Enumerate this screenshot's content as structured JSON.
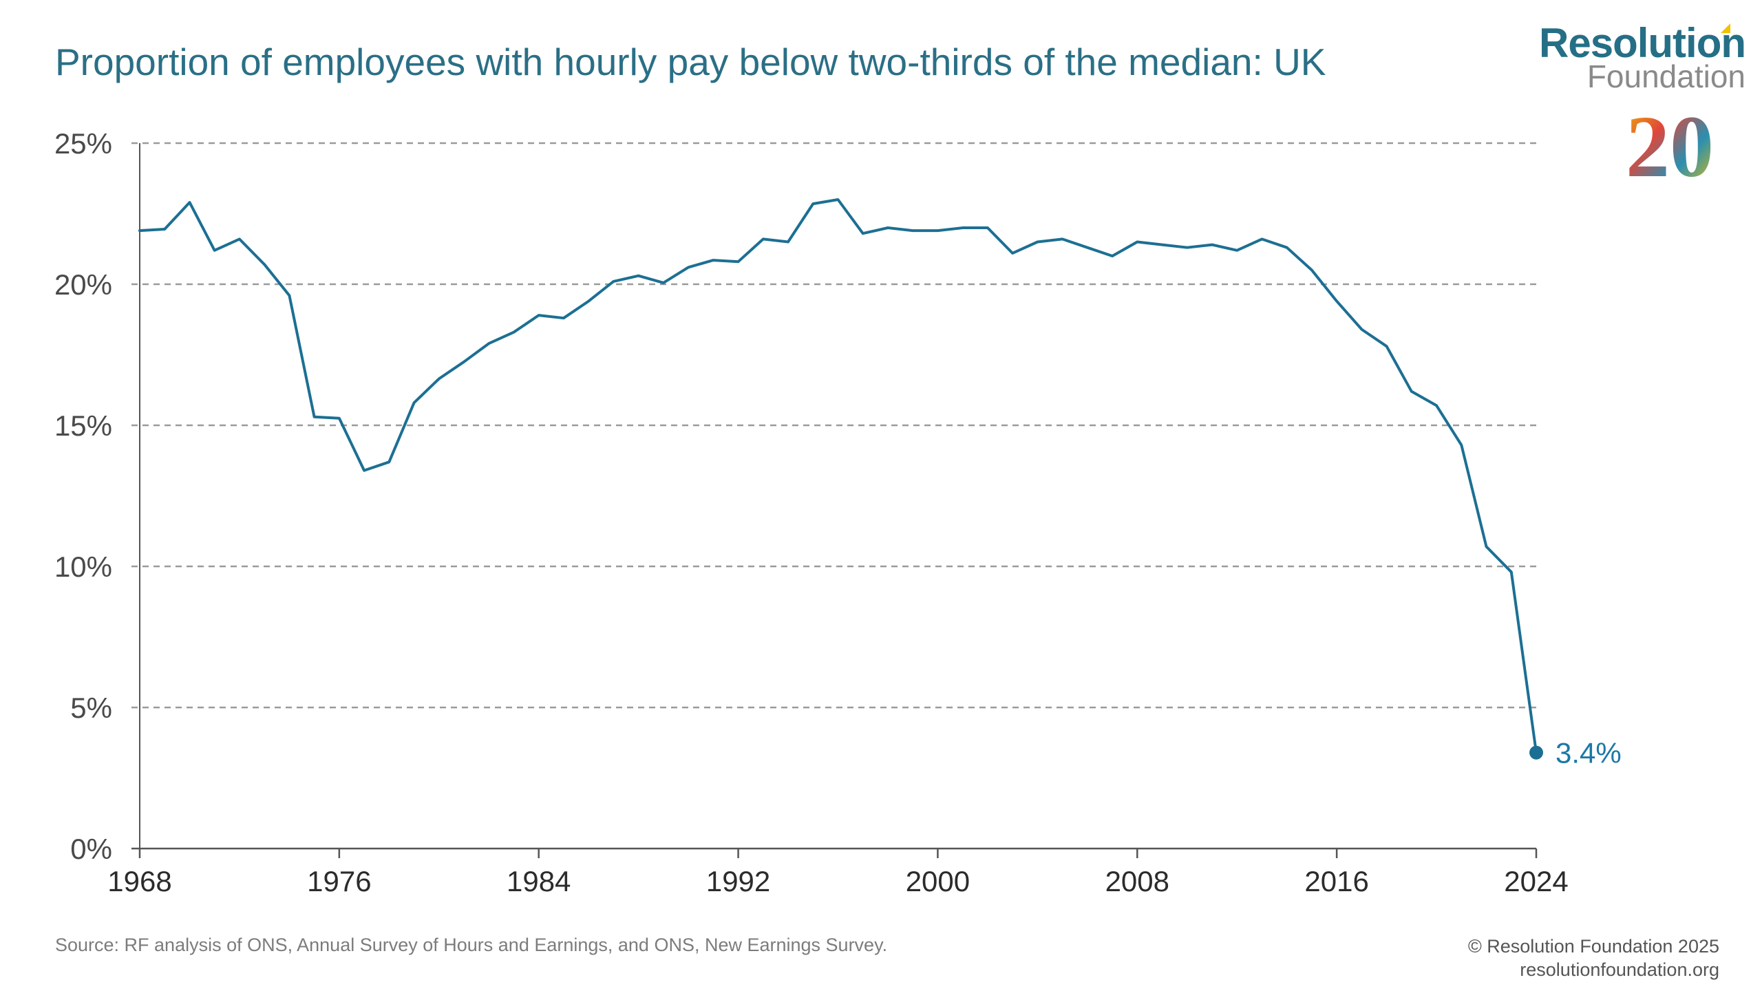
{
  "title": "Proportion of employees with hourly pay below two-thirds of the median: UK",
  "logo": {
    "main": "Resolution",
    "sub": "Foundation",
    "anniversary": "20"
  },
  "footer": {
    "source": "Source: RF analysis of ONS, Annual Survey of Hours and Earnings, and ONS, New Earnings Survey.",
    "copyright": "© Resolution Foundation 2025",
    "website": "resolutionfoundation.org"
  },
  "colors": {
    "line": "#1c6f93",
    "title": "#2a6f86",
    "grid": "#9a9a9a",
    "axis": "#555555",
    "logo_teal": "#256f86",
    "logo_grey": "#8a8a8a",
    "logo_yellow": "#f2c200"
  },
  "chart_data": {
    "type": "line",
    "title": "Proportion of employees with hourly pay below two-thirds of the median: UK",
    "xlabel": "",
    "ylabel": "",
    "xlim": [
      1968,
      2024
    ],
    "ylim": [
      0,
      25
    ],
    "grid": true,
    "y_ticks": [
      "0%",
      "5%",
      "10%",
      "15%",
      "20%",
      "25%"
    ],
    "x_ticks": [
      "1968",
      "1976",
      "1984",
      "1992",
      "2000",
      "2008",
      "2016",
      "2024"
    ],
    "endpoint_label": "3.4%",
    "series": [
      {
        "x": [
          1968,
          1969,
          1970,
          1971,
          1972,
          1973,
          1974,
          1975,
          1976,
          1977,
          1978,
          1979,
          1980,
          1981,
          1982,
          1983,
          1984,
          1985,
          1986,
          1987,
          1988,
          1989,
          1990,
          1991,
          1992,
          1993,
          1994,
          1995,
          1996,
          1997,
          1998,
          1999,
          2000,
          2001,
          2002,
          2003,
          2004,
          2005,
          2006,
          2007,
          2008,
          2009,
          2010,
          2011,
          2012,
          2013,
          2014,
          2015,
          2016,
          2017,
          2018,
          2019,
          2020,
          2021,
          2022,
          2023,
          2024
        ],
        "values": [
          21.9,
          21.95,
          22.9,
          21.2,
          21.6,
          20.7,
          19.6,
          15.3,
          15.25,
          13.4,
          13.7,
          15.8,
          16.65,
          17.25,
          17.9,
          18.3,
          18.9,
          18.8,
          19.4,
          20.1,
          20.3,
          20.05,
          20.6,
          20.85,
          20.8,
          21.6,
          21.5,
          22.85,
          23.0,
          21.8,
          22.0,
          21.9,
          21.9,
          22.0,
          22.0,
          21.1,
          21.5,
          21.6,
          21.3,
          21.0,
          21.5,
          21.4,
          21.3,
          21.4,
          21.2,
          21.6,
          21.3,
          20.5,
          19.4,
          18.4,
          17.8,
          16.2,
          15.7,
          14.3,
          10.7,
          9.8,
          3.4
        ]
      }
    ]
  }
}
